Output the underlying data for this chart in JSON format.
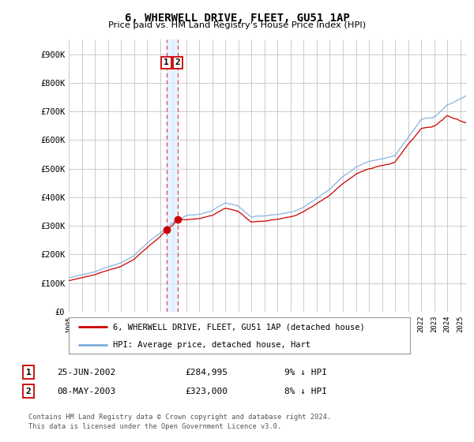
{
  "title": "6, WHERWELL DRIVE, FLEET, GU51 1AP",
  "subtitle": "Price paid vs. HM Land Registry's House Price Index (HPI)",
  "ylim": [
    0,
    950000
  ],
  "xlim_start": 1995.0,
  "xlim_end": 2025.5,
  "transaction1": {
    "date_num": 2002.48,
    "price": 284995,
    "label": "1",
    "date_str": "25-JUN-2002",
    "price_str": "£284,995",
    "pct_str": "9% ↓ HPI"
  },
  "transaction2": {
    "date_num": 2003.36,
    "price": 323000,
    "label": "2",
    "date_str": "08-MAY-2003",
    "price_str": "£323,000",
    "pct_str": "8% ↓ HPI"
  },
  "line1_color": "#cc0000",
  "line2_color": "#7aaddb",
  "vline_color": "#dd2222",
  "vband_color": "#ddeeff",
  "legend_line1": "6, WHERWELL DRIVE, FLEET, GU51 1AP (detached house)",
  "legend_line2": "HPI: Average price, detached house, Hart",
  "footer1": "Contains HM Land Registry data © Crown copyright and database right 2024.",
  "footer2": "This data is licensed under the Open Government Licence v3.0.",
  "table_row1": [
    "1",
    "25-JUN-2002",
    "£284,995",
    "9% ↓ HPI"
  ],
  "table_row2": [
    "2",
    "08-MAY-2003",
    "£323,000",
    "8% ↓ HPI"
  ],
  "bg_color": "#ffffff",
  "grid_color": "#cccccc"
}
